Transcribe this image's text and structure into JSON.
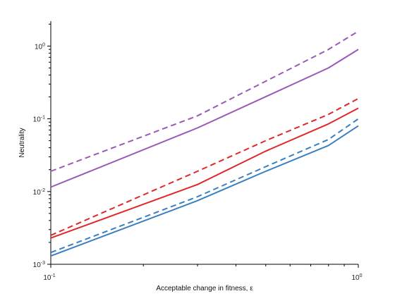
{
  "chart_data": {
    "type": "line",
    "title": "",
    "xlabel": "Acceptable change in fitness, ε",
    "ylabel": "Neutrality",
    "xscale": "log",
    "yscale": "log",
    "xlim": [
      0.1,
      1.0
    ],
    "ylim": [
      0.001,
      2.2
    ],
    "grid": false,
    "legend": "none",
    "x_ticks": [
      {
        "value": 0.1,
        "base": "10",
        "exp": "-1"
      },
      {
        "value": 1.0,
        "base": "10",
        "exp": "0"
      }
    ],
    "y_ticks": [
      {
        "value": 0.001,
        "base": "10",
        "exp": "-3"
      },
      {
        "value": 0.01,
        "base": "10",
        "exp": "-2"
      },
      {
        "value": 0.1,
        "base": "10",
        "exp": "-1"
      },
      {
        "value": 1.0,
        "base": "10",
        "exp": "0"
      }
    ],
    "series": [
      {
        "color": "#9b59b6",
        "style": "dashed",
        "x": [
          0.1,
          0.3,
          0.8,
          1.0
        ],
        "y": [
          0.019,
          0.11,
          0.9,
          1.6
        ]
      },
      {
        "color": "#9b59b6",
        "style": "solid",
        "x": [
          0.1,
          0.3,
          0.8,
          1.0
        ],
        "y": [
          0.0115,
          0.075,
          0.5,
          0.9
        ]
      },
      {
        "color": "#e02828",
        "style": "dashed",
        "x": [
          0.1,
          0.3,
          0.5,
          0.8,
          1.0
        ],
        "y": [
          0.0025,
          0.019,
          0.05,
          0.115,
          0.19
        ]
      },
      {
        "color": "#e02828",
        "style": "solid",
        "x": [
          0.1,
          0.3,
          0.5,
          0.8,
          1.0
        ],
        "y": [
          0.0023,
          0.0125,
          0.036,
          0.085,
          0.14
        ]
      },
      {
        "color": "#3a7fc0",
        "style": "dashed",
        "x": [
          0.1,
          0.3,
          0.5,
          0.8,
          1.0
        ],
        "y": [
          0.00145,
          0.0085,
          0.022,
          0.052,
          0.1
        ]
      },
      {
        "color": "#3a7fc0",
        "style": "solid",
        "x": [
          0.1,
          0.3,
          0.5,
          0.8,
          1.0
        ],
        "y": [
          0.0013,
          0.0075,
          0.019,
          0.043,
          0.08
        ]
      }
    ]
  }
}
